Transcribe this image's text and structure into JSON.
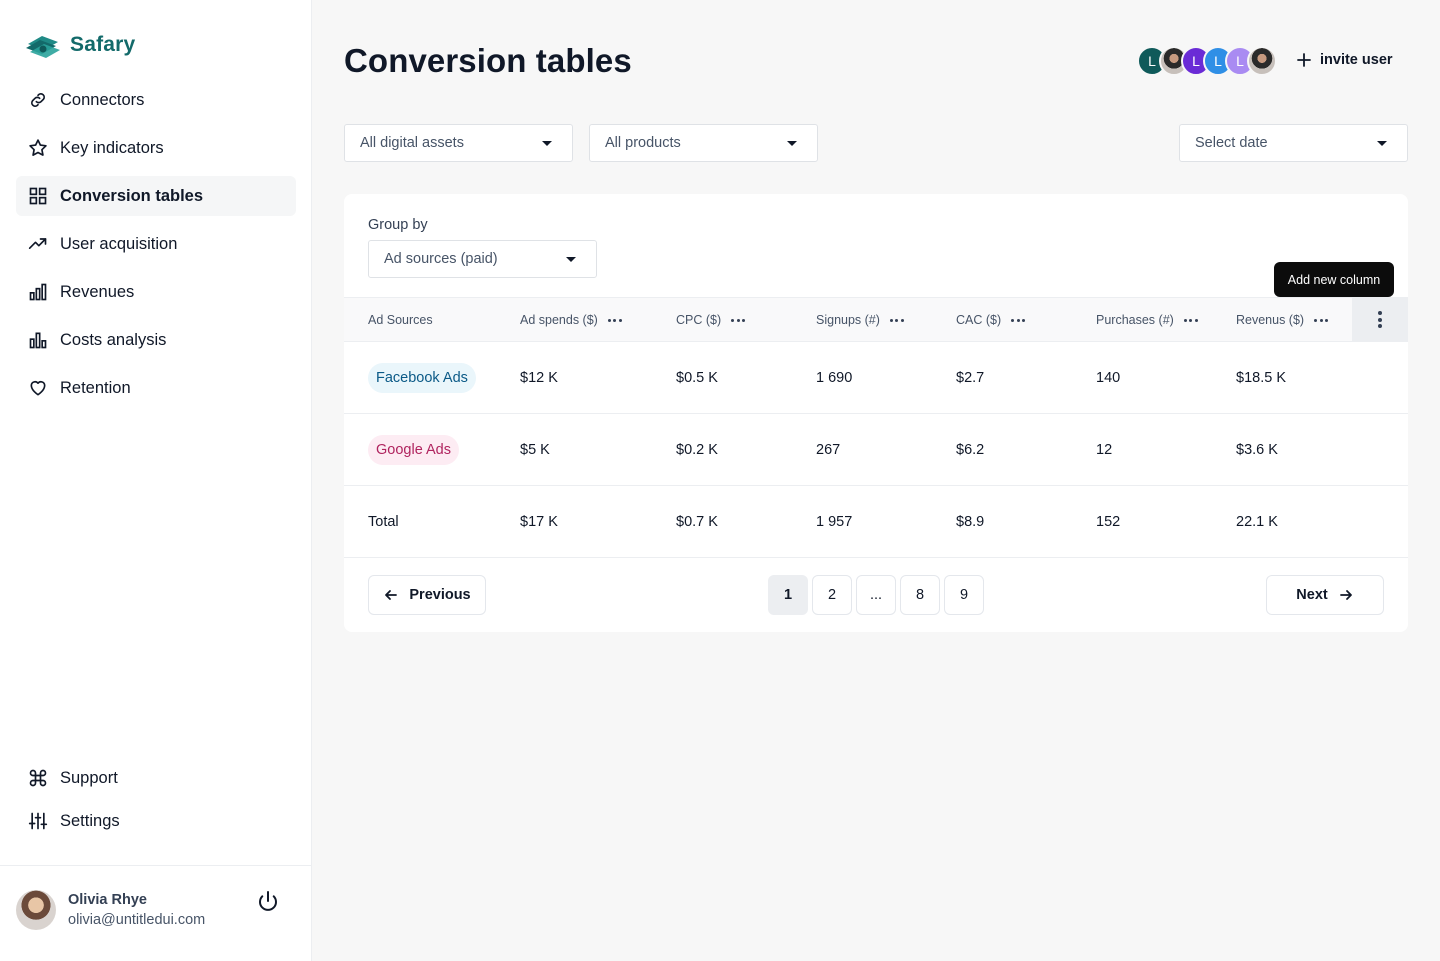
{
  "brand": {
    "name": "Safary",
    "icon": "cash-stack-icon",
    "color": "#136a6a"
  },
  "nav": {
    "items": [
      {
        "label": "Connectors",
        "icon": "link-icon",
        "active": false
      },
      {
        "label": "Key indicators",
        "icon": "star-icon",
        "active": false
      },
      {
        "label": "Conversion tables",
        "icon": "grid-icon",
        "active": true
      },
      {
        "label": "User acquisition",
        "icon": "trend-up-icon",
        "active": false
      },
      {
        "label": "Revenues",
        "icon": "bar-chart-icon",
        "active": false
      },
      {
        "label": "Costs analysis",
        "icon": "bar-chart-icon",
        "active": false
      },
      {
        "label": "Retention",
        "icon": "heart-icon",
        "active": false
      }
    ],
    "bottom": [
      {
        "label": "Support",
        "icon": "command-icon"
      },
      {
        "label": "Settings",
        "icon": "sliders-icon"
      }
    ]
  },
  "user": {
    "name": "Olivia Rhye",
    "email": "olivia@untitledui.com"
  },
  "header": {
    "title": "Conversion tables",
    "team_avatars": [
      {
        "initial": "L",
        "color": "#0f5a5a"
      },
      {
        "initial": "",
        "color": "photo"
      },
      {
        "initial": "L",
        "color": "#6a2bd6"
      },
      {
        "initial": "L",
        "color": "#2f8fe6"
      },
      {
        "initial": "L",
        "color": "#a98bf2"
      },
      {
        "initial": "",
        "color": "photo"
      }
    ],
    "invite_label": "invite user"
  },
  "filters": {
    "assets": "All digital assets",
    "products": "All products",
    "date": "Select date"
  },
  "table": {
    "group_by_label": "Group by",
    "group_by_value": "Ad sources (paid)",
    "tooltip": "Add new column",
    "columns": [
      "Ad Sources",
      "Ad spends ($)",
      "CPC ($)",
      "Signups (#)",
      "CAC ($)",
      "Purchases (#)",
      "Revenus ($)"
    ],
    "rows": [
      {
        "source": "Facebook Ads",
        "badge_bg": "#eaf6fb",
        "badge_fg": "#0b5a87",
        "values": [
          "$12 K",
          "$0.5 K",
          "1 690",
          "$2.7",
          "140",
          "$18.5 K"
        ]
      },
      {
        "source": "Google Ads",
        "badge_bg": "#fdecf3",
        "badge_fg": "#b0245f",
        "values": [
          "$5 K",
          "$0.2 K",
          "267",
          "$6.2",
          "12",
          "$3.6 K"
        ]
      }
    ],
    "total": {
      "label": "Total",
      "values": [
        "$17 K",
        "$0.7 K",
        "1 957",
        "$8.9",
        "152",
        "22.1 K"
      ]
    }
  },
  "pagination": {
    "previous": "Previous",
    "next": "Next",
    "pages": [
      "1",
      "2",
      "...",
      "8",
      "9"
    ],
    "current": "1"
  }
}
